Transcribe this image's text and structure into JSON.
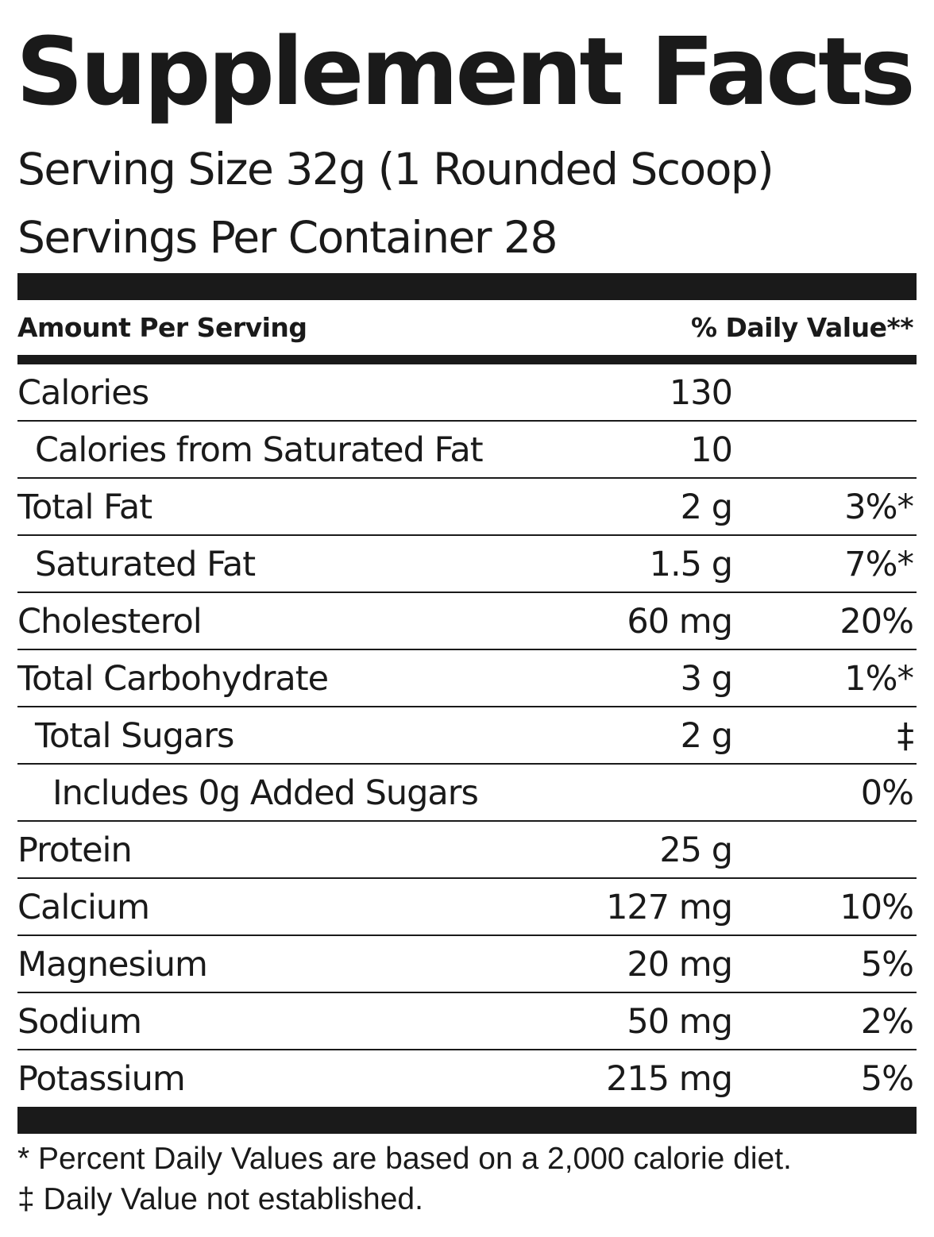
{
  "title": "Supplement Facts",
  "serving_size": "Serving Size 32g (1 Rounded Scoop)",
  "servings_per_container": "Servings Per Container  28",
  "header": {
    "amount_per_serving": "Amount Per Serving",
    "daily_value": "% Daily Value**"
  },
  "rows": [
    {
      "name": "Calories",
      "amount": "130",
      "dv": ""
    },
    {
      "name": "Calories from Saturated Fat",
      "amount": "10",
      "dv": ""
    },
    {
      "name": "Total Fat",
      "amount": "2 g",
      "dv": "3%*"
    },
    {
      "name": "Saturated Fat",
      "amount": "1.5 g",
      "dv": "7%*"
    },
    {
      "name": "Cholesterol",
      "amount": "60 mg",
      "dv": "20%"
    },
    {
      "name": "Total Carbohydrate",
      "amount": "3 g",
      "dv": "1%*"
    },
    {
      "name": "Total Sugars",
      "amount": "2 g",
      "dv": "‡"
    },
    {
      "name": "Includes 0g Added Sugars",
      "amount": "",
      "dv": "0%"
    },
    {
      "name": "Protein",
      "amount": "25 g",
      "dv": ""
    },
    {
      "name": "Calcium",
      "amount": "127 mg",
      "dv": "10%"
    },
    {
      "name": "Magnesium",
      "amount": "20 mg",
      "dv": "5%"
    },
    {
      "name": "Sodium",
      "amount": "50 mg",
      "dv": "2%"
    },
    {
      "name": "Potassium",
      "amount": "215 mg",
      "dv": "5%"
    }
  ],
  "footnotes": [
    "* Percent Daily Values are based on a 2,000 calorie diet.",
    "‡ Daily Value not established."
  ]
}
